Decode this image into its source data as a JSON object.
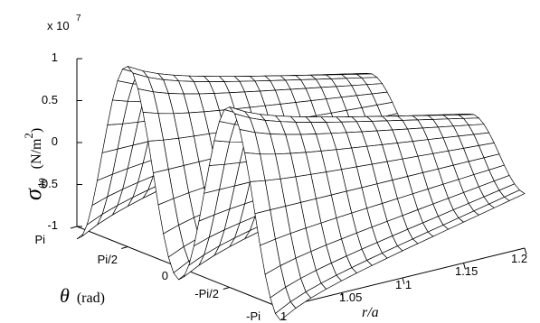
{
  "chart_data": {
    "type": "surface",
    "exponent_label": "x 10",
    "exponent_power": "7",
    "z_ticks": [
      "1",
      "0.5",
      "0",
      "-0.5",
      "-1"
    ],
    "theta_ticks": [
      "Pi",
      "Pi/2",
      "0",
      "-Pi/2",
      "-Pi"
    ],
    "r_ticks": [
      "1",
      "1.05",
      "1 1",
      "1.15",
      "1.2"
    ],
    "zlabel_symbol": "σ",
    "zlabel_subscript": "θθ",
    "zlabel_units": "(N/m",
    "zlabel_units_power": "2",
    "zlabel_units_close": ")",
    "theta_label_symbol": "θ",
    "theta_label_units": "(rad)",
    "r_label": "r/a",
    "zlim": [
      -10000000.0,
      10000000.0
    ],
    "theta_range": [
      -3.1416,
      3.1416
    ],
    "r_range": [
      1.0,
      1.2
    ],
    "theta_samples": 41,
    "r_samples": 17,
    "surface": {
      "formula": "sigma_thetatheta(r, theta) approx -A(r) * cos(2*theta)",
      "amplitude_by_r": {
        "r": [
          1.0,
          1.2
        ],
        "amplitude": [
          10000000.0,
          3500000.0
        ]
      }
    },
    "grid": false
  }
}
